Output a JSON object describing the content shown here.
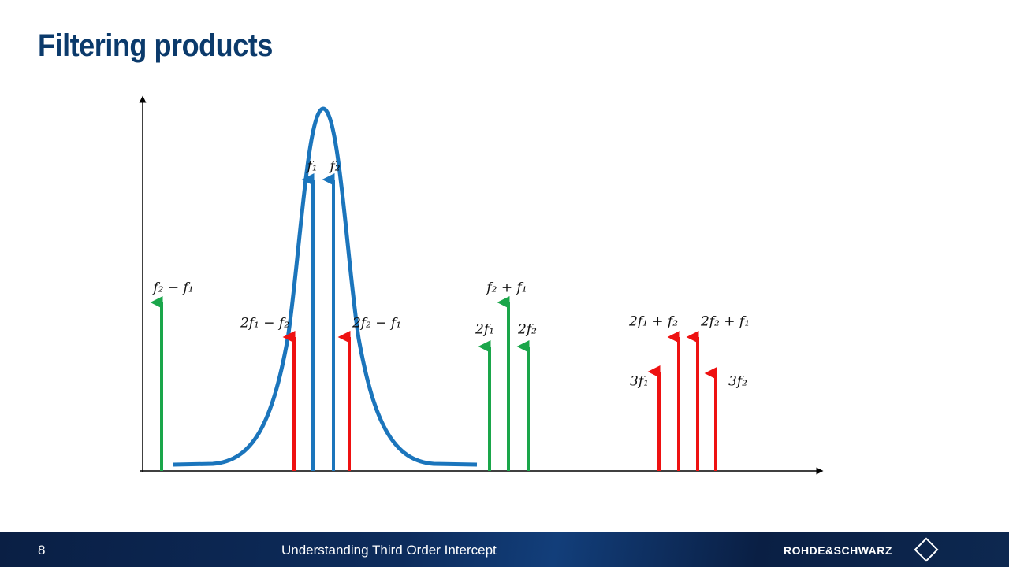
{
  "header": {
    "title": "Filtering products"
  },
  "diagram": {
    "labels": [
      "f₂ − f₁",
      "f₁",
      "f₂",
      "2f₁ − f₂",
      "2f₂ − f₁",
      "f₂ + f₁",
      "2f₁",
      "2f₂",
      "2f₁ + f₂",
      "2f₂ + f₁",
      "3f₁",
      "3f₂"
    ]
  },
  "footer": {
    "page_number": 8,
    "title": "Understanding Third Order Intercept",
    "brand": "ROHDE&SCHWARZ"
  }
}
